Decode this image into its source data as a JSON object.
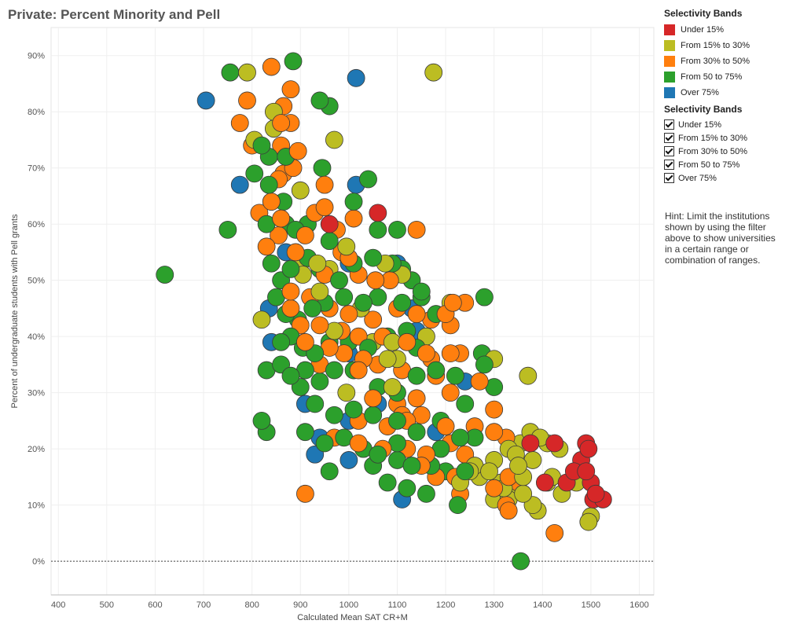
{
  "header": {
    "title": "Private: Percent Minority and Pell"
  },
  "legend": {
    "title": "Selectivity Bands",
    "items": [
      {
        "label": "Under 15%",
        "color": "#d62728"
      },
      {
        "label": "From 15% to 30%",
        "color": "#bcbd22"
      },
      {
        "label": "From 30% to 50%",
        "color": "#ff7f0e"
      },
      {
        "label": "From 50 to 75%",
        "color": "#2ca02c"
      },
      {
        "label": "Over 75%",
        "color": "#1f77b4"
      }
    ]
  },
  "filter": {
    "title": "Selectivity Bands",
    "items": [
      {
        "label": "Under 15%",
        "checked": true
      },
      {
        "label": "From 15% to 30%",
        "checked": true
      },
      {
        "label": "From 30% to 50%",
        "checked": true
      },
      {
        "label": "From 50 to 75%",
        "checked": true
      },
      {
        "label": "Over 75%",
        "checked": true
      }
    ]
  },
  "hint": "Hint: Limit the institutions shown by using the filter above to show universities in a certain range or combination of ranges.",
  "chart_data": {
    "type": "scatter",
    "title": "Private: Percent Minority and Pell",
    "xlabel": "Calculated Mean SAT CR+M",
    "ylabel": "Percent of undergraduate students with Pell grants",
    "xlim": [
      385,
      1630
    ],
    "ylim": [
      -6,
      95
    ],
    "xticks": [
      400,
      500,
      600,
      700,
      800,
      900,
      1000,
      1100,
      1200,
      1300,
      1400,
      1500,
      1600
    ],
    "yticks": [
      0,
      10,
      20,
      30,
      40,
      50,
      60,
      70,
      80,
      90
    ],
    "ytick_labels": [
      "0%",
      "10%",
      "20%",
      "30%",
      "40%",
      "50%",
      "60%",
      "70%",
      "80%",
      "90%"
    ],
    "reference_line_y": 0,
    "grid": true,
    "legend_position": "right",
    "series": [
      {
        "name": "Under 15%",
        "color": "#d62728",
        "points": [
          [
            960,
            60
          ],
          [
            1060,
            62
          ],
          [
            1375,
            21
          ],
          [
            1405,
            14
          ],
          [
            1425,
            21
          ],
          [
            1450,
            14
          ],
          [
            1465,
            16
          ],
          [
            1480,
            18
          ],
          [
            1490,
            21
          ],
          [
            1495,
            20
          ],
          [
            1500,
            14
          ],
          [
            1505,
            11
          ],
          [
            1510,
            12
          ],
          [
            1525,
            11
          ],
          [
            1490,
            16
          ]
        ]
      },
      {
        "name": "From 15% to 30%",
        "color": "#bcbd22",
        "points": [
          [
            790,
            87
          ],
          [
            1175,
            87
          ],
          [
            845,
            80
          ],
          [
            845,
            77
          ],
          [
            805,
            75
          ],
          [
            970,
            75
          ],
          [
            900,
            66
          ],
          [
            995,
            56
          ],
          [
            935,
            53
          ],
          [
            900,
            53
          ],
          [
            905,
            51
          ],
          [
            960,
            52
          ],
          [
            940,
            48
          ],
          [
            1075,
            53
          ],
          [
            1110,
            51
          ],
          [
            820,
            43
          ],
          [
            1025,
            45
          ],
          [
            1210,
            46
          ],
          [
            970,
            41
          ],
          [
            1160,
            40
          ],
          [
            1050,
            39
          ],
          [
            1090,
            39
          ],
          [
            1100,
            36
          ],
          [
            1080,
            36
          ],
          [
            1300,
            36
          ],
          [
            1370,
            33
          ],
          [
            1090,
            31
          ],
          [
            995,
            30
          ],
          [
            1375,
            23
          ],
          [
            1395,
            22
          ],
          [
            1410,
            21
          ],
          [
            1355,
            21
          ],
          [
            1330,
            20
          ],
          [
            1300,
            18
          ],
          [
            1345,
            19
          ],
          [
            1380,
            18
          ],
          [
            1260,
            17
          ],
          [
            1290,
            16
          ],
          [
            1315,
            14
          ],
          [
            1345,
            13
          ],
          [
            1360,
            12
          ],
          [
            1330,
            11
          ],
          [
            1300,
            11
          ],
          [
            1380,
            10
          ],
          [
            1390,
            9
          ],
          [
            1440,
            12
          ],
          [
            1470,
            14
          ],
          [
            1500,
            8
          ],
          [
            1495,
            7
          ],
          [
            1420,
            15
          ],
          [
            1435,
            20
          ],
          [
            1360,
            15
          ],
          [
            1250,
            16
          ],
          [
            1270,
            15
          ],
          [
            1230,
            14
          ],
          [
            1410,
            14
          ],
          [
            1350,
            17
          ],
          [
            1320,
            13
          ]
        ]
      },
      {
        "name": "From 30% to 50%",
        "color": "#ff7f0e",
        "points": [
          [
            840,
            88
          ],
          [
            880,
            84
          ],
          [
            790,
            82
          ],
          [
            865,
            81
          ],
          [
            775,
            78
          ],
          [
            860,
            78
          ],
          [
            800,
            74
          ],
          [
            860,
            74
          ],
          [
            880,
            78
          ],
          [
            885,
            70
          ],
          [
            895,
            73
          ],
          [
            855,
            68
          ],
          [
            865,
            69
          ],
          [
            950,
            67
          ],
          [
            840,
            64
          ],
          [
            815,
            62
          ],
          [
            860,
            61
          ],
          [
            930,
            62
          ],
          [
            1010,
            61
          ],
          [
            1140,
            59
          ],
          [
            855,
            58
          ],
          [
            910,
            58
          ],
          [
            950,
            63
          ],
          [
            975,
            59
          ],
          [
            830,
            56
          ],
          [
            890,
            55
          ],
          [
            985,
            55
          ],
          [
            1000,
            54
          ],
          [
            950,
            51
          ],
          [
            1020,
            51
          ],
          [
            1055,
            50
          ],
          [
            1085,
            50
          ],
          [
            880,
            48
          ],
          [
            920,
            47
          ],
          [
            960,
            45
          ],
          [
            1000,
            44
          ],
          [
            880,
            45
          ],
          [
            1050,
            43
          ],
          [
            1100,
            45
          ],
          [
            1140,
            44
          ],
          [
            1170,
            43
          ],
          [
            1200,
            44
          ],
          [
            1210,
            42
          ],
          [
            1215,
            46
          ],
          [
            1240,
            46
          ],
          [
            900,
            42
          ],
          [
            940,
            42
          ],
          [
            985,
            41
          ],
          [
            1020,
            40
          ],
          [
            910,
            39
          ],
          [
            960,
            38
          ],
          [
            990,
            37
          ],
          [
            1030,
            36
          ],
          [
            1070,
            40
          ],
          [
            1120,
            39
          ],
          [
            1160,
            37
          ],
          [
            1170,
            36
          ],
          [
            1210,
            37
          ],
          [
            1230,
            37
          ],
          [
            940,
            35
          ],
          [
            1020,
            34
          ],
          [
            1060,
            35
          ],
          [
            1110,
            34
          ],
          [
            1180,
            33
          ],
          [
            1210,
            30
          ],
          [
            1270,
            32
          ],
          [
            1050,
            29
          ],
          [
            1100,
            28
          ],
          [
            1140,
            29
          ],
          [
            1300,
            27
          ],
          [
            1020,
            25
          ],
          [
            1080,
            24
          ],
          [
            1110,
            26
          ],
          [
            1150,
            26
          ],
          [
            1200,
            24
          ],
          [
            1260,
            24
          ],
          [
            1300,
            23
          ],
          [
            1325,
            22
          ],
          [
            970,
            22
          ],
          [
            1020,
            21
          ],
          [
            1070,
            20
          ],
          [
            1120,
            20
          ],
          [
            1160,
            19
          ],
          [
            1210,
            21
          ],
          [
            1240,
            19
          ],
          [
            1330,
            15
          ],
          [
            1350,
            14
          ],
          [
            1300,
            13
          ],
          [
            1220,
            15
          ],
          [
            1180,
            15
          ],
          [
            1150,
            17
          ],
          [
            1325,
            10
          ],
          [
            1425,
            5
          ],
          [
            910,
            12
          ],
          [
            1120,
            25
          ],
          [
            1230,
            12
          ],
          [
            1330,
            9
          ]
        ]
      },
      {
        "name": "From 50 to 75%",
        "color": "#2ca02c",
        "points": [
          [
            620,
            51
          ],
          [
            885,
            89
          ],
          [
            755,
            87
          ],
          [
            940,
            82
          ],
          [
            960,
            81
          ],
          [
            750,
            59
          ],
          [
            805,
            69
          ],
          [
            835,
            72
          ],
          [
            820,
            74
          ],
          [
            870,
            72
          ],
          [
            880,
            70
          ],
          [
            835,
            67
          ],
          [
            865,
            64
          ],
          [
            945,
            70
          ],
          [
            1040,
            68
          ],
          [
            830,
            60
          ],
          [
            870,
            60
          ],
          [
            890,
            59
          ],
          [
            915,
            60
          ],
          [
            960,
            57
          ],
          [
            1010,
            64
          ],
          [
            1060,
            59
          ],
          [
            1100,
            59
          ],
          [
            840,
            53
          ],
          [
            860,
            50
          ],
          [
            880,
            52
          ],
          [
            915,
            54
          ],
          [
            940,
            52
          ],
          [
            980,
            50
          ],
          [
            1010,
            53
          ],
          [
            1050,
            54
          ],
          [
            1090,
            53
          ],
          [
            1130,
            50
          ],
          [
            850,
            47
          ],
          [
            870,
            44
          ],
          [
            895,
            43
          ],
          [
            925,
            45
          ],
          [
            950,
            46
          ],
          [
            990,
            47
          ],
          [
            1030,
            46
          ],
          [
            1060,
            47
          ],
          [
            1110,
            46
          ],
          [
            1150,
            47
          ],
          [
            1280,
            47
          ],
          [
            860,
            39
          ],
          [
            880,
            40
          ],
          [
            905,
            38
          ],
          [
            930,
            37
          ],
          [
            960,
            39
          ],
          [
            1000,
            39
          ],
          [
            1040,
            38
          ],
          [
            1080,
            40
          ],
          [
            1120,
            41
          ],
          [
            1140,
            38
          ],
          [
            860,
            35
          ],
          [
            880,
            33
          ],
          [
            910,
            34
          ],
          [
            940,
            32
          ],
          [
            970,
            34
          ],
          [
            1010,
            34
          ],
          [
            1060,
            31
          ],
          [
            1100,
            30
          ],
          [
            1140,
            33
          ],
          [
            1180,
            34
          ],
          [
            1220,
            33
          ],
          [
            1275,
            37
          ],
          [
            1280,
            35
          ],
          [
            1300,
            31
          ],
          [
            830,
            34
          ],
          [
            900,
            31
          ],
          [
            930,
            28
          ],
          [
            970,
            26
          ],
          [
            1010,
            27
          ],
          [
            1050,
            26
          ],
          [
            1100,
            25
          ],
          [
            1140,
            23
          ],
          [
            1190,
            25
          ],
          [
            1230,
            22
          ],
          [
            1260,
            22
          ],
          [
            910,
            23
          ],
          [
            950,
            21
          ],
          [
            990,
            22
          ],
          [
            1030,
            20
          ],
          [
            1060,
            19
          ],
          [
            1100,
            18
          ],
          [
            1130,
            17
          ],
          [
            1170,
            17
          ],
          [
            1200,
            16
          ],
          [
            1240,
            16
          ],
          [
            820,
            25
          ],
          [
            830,
            23
          ],
          [
            960,
            16
          ],
          [
            1050,
            17
          ],
          [
            1080,
            14
          ],
          [
            1120,
            13
          ],
          [
            1160,
            12
          ],
          [
            1225,
            10
          ],
          [
            1355,
            0
          ],
          [
            1110,
            52
          ],
          [
            1150,
            48
          ],
          [
            1180,
            44
          ],
          [
            1240,
            28
          ],
          [
            1190,
            20
          ],
          [
            1100,
            21
          ]
        ]
      },
      {
        "name": "Over 75%",
        "color": "#1f77b4",
        "points": [
          [
            705,
            82
          ],
          [
            1015,
            86
          ],
          [
            775,
            67
          ],
          [
            1015,
            67
          ],
          [
            840,
            64
          ],
          [
            1000,
            53
          ],
          [
            870,
            55
          ],
          [
            1100,
            53
          ],
          [
            835,
            45
          ],
          [
            1130,
            45
          ],
          [
            840,
            39
          ],
          [
            1140,
            41
          ],
          [
            1000,
            37
          ],
          [
            910,
            28
          ],
          [
            940,
            22
          ],
          [
            1000,
            18
          ],
          [
            930,
            19
          ],
          [
            1110,
            11
          ],
          [
            1240,
            32
          ],
          [
            1180,
            23
          ],
          [
            1060,
            28
          ],
          [
            1000,
            25
          ]
        ]
      }
    ]
  }
}
